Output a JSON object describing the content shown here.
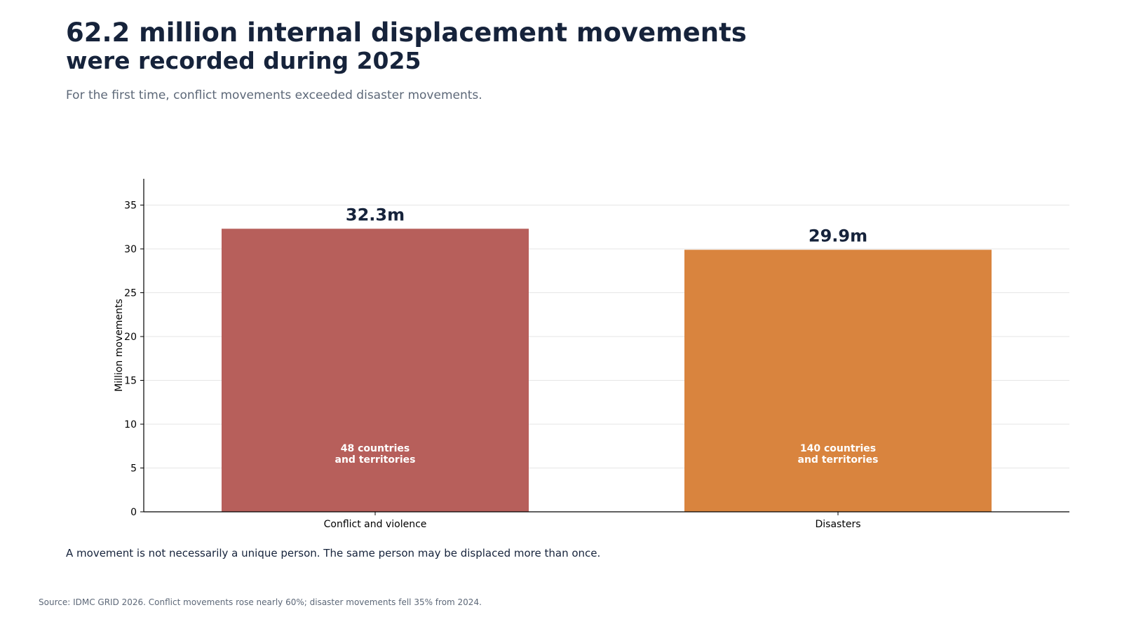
{
  "header": {
    "title_line1": "62.2 million internal displacement movements",
    "title_line2": "were recorded during 2025",
    "subtitle": "For the first time, conflict movements exceeded disaster movements."
  },
  "footer": {
    "note": "A movement is not necessarily a unique person. The same person may be displaced more than once.",
    "source": "Source: IDMC GRID 2026. Conflict movements rose nearly 60%; disaster movements fell 35% from 2024."
  },
  "chart_data": {
    "type": "bar",
    "categories": [
      "Conflict and violence",
      "Disasters"
    ],
    "values": [
      32.3,
      29.9
    ],
    "value_labels": [
      "32.3m",
      "29.9m"
    ],
    "inner_labels": [
      [
        "48 countries",
        "and territories"
      ],
      [
        "140 countries",
        "and territories"
      ]
    ],
    "colors": [
      "#b75f5b",
      "#d9843e"
    ],
    "ylabel": "Million movements",
    "xlabel": "",
    "ylim": [
      0,
      38
    ],
    "yticks": [
      0,
      5,
      10,
      15,
      20,
      25,
      30,
      35
    ],
    "grid": true
  }
}
